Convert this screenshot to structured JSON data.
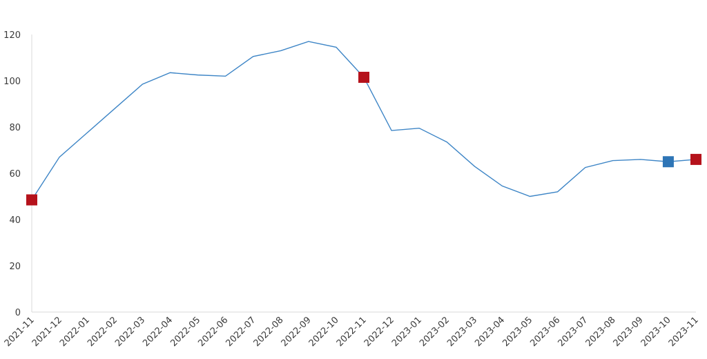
{
  "chart_data": {
    "type": "line",
    "title": "",
    "xlabel": "",
    "ylabel": "",
    "categories": [
      "2021-11",
      "2021-12",
      "2022-01",
      "2022-02",
      "2022-03",
      "2022-04",
      "2022-05",
      "2022-06",
      "2022-07",
      "2022-08",
      "2022-09",
      "2022-10",
      "2022-11",
      "2022-12",
      "2023-01",
      "2023-02",
      "2023-03",
      "2023-04",
      "2023-05",
      "2023-06",
      "2023-07",
      "2023-08",
      "2023-09",
      "2023-10",
      "2023-11"
    ],
    "series": [
      {
        "values": [
          48.5,
          67,
          77.5,
          88,
          98.5,
          103.5,
          102.5,
          102,
          110.5,
          113,
          117,
          114.5,
          101.5,
          78.5,
          79.5,
          73.5,
          63,
          54.5,
          50,
          52,
          62.5,
          65.5,
          66,
          65,
          66
        ],
        "color": "#3d85c6"
      }
    ],
    "markers": [
      {
        "category": "2021-11",
        "value": 48.5,
        "color": "#b5121b"
      },
      {
        "category": "2022-11",
        "value": 101.5,
        "color": "#b5121b"
      },
      {
        "category": "2023-10",
        "value": 65,
        "color": "#2e75b6"
      },
      {
        "category": "2023-11",
        "value": 66,
        "color": "#b5121b"
      }
    ],
    "y_ticks": [
      0,
      20,
      40,
      60,
      80,
      100,
      120
    ],
    "ylim": [
      0,
      120
    ],
    "grid": false,
    "legend": "none"
  }
}
